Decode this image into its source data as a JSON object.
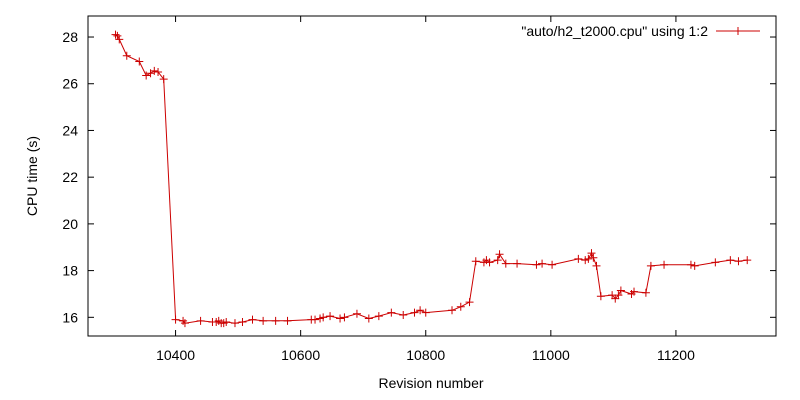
{
  "chart_data": {
    "type": "line",
    "title": "",
    "xlabel": "Revision number",
    "ylabel": "CPU time (s)",
    "xlim": [
      10260,
      11360
    ],
    "ylim": [
      15.2,
      28.9
    ],
    "xticks": [
      10400,
      10600,
      10800,
      11000,
      11200
    ],
    "yticks": [
      16,
      18,
      20,
      22,
      24,
      26,
      28
    ],
    "grid": false,
    "legend_position": "top-right",
    "color": "#cc0000",
    "series": [
      {
        "name": "\"auto/h2_t2000.cpu\" using 1:2",
        "x": [
          10304,
          10307,
          10310,
          10322,
          10342,
          10353,
          10360,
          10366,
          10372,
          10381,
          10400,
          10412,
          10415,
          10440,
          10459,
          10465,
          10469,
          10473,
          10477,
          10481,
          10495,
          10507,
          10523,
          10540,
          10560,
          10579,
          10617,
          10623,
          10631,
          10636,
          10647,
          10663,
          10670,
          10690,
          10709,
          10725,
          10745,
          10764,
          10782,
          10791,
          10800,
          10842,
          10856,
          10870,
          10880,
          10893,
          10897,
          10902,
          10915,
          10918,
          10928,
          10946,
          10977,
          10986,
          11002,
          11044,
          11055,
          11060,
          11065,
          11068,
          11073,
          11080,
          11098,
          11103,
          11108,
          11112,
          11129,
          11133,
          11152,
          11160,
          11181,
          11224,
          11230,
          11263,
          11287,
          11300,
          11314
        ],
        "y": [
          28.1,
          28.05,
          27.9,
          27.2,
          26.95,
          26.35,
          26.45,
          26.55,
          26.5,
          26.2,
          15.9,
          15.85,
          15.75,
          15.85,
          15.8,
          15.8,
          15.85,
          15.75,
          15.75,
          15.8,
          15.75,
          15.8,
          15.9,
          15.85,
          15.85,
          15.85,
          15.9,
          15.9,
          15.95,
          16.0,
          16.05,
          15.95,
          16.0,
          16.15,
          15.95,
          16.05,
          16.2,
          16.1,
          16.2,
          16.3,
          16.2,
          16.3,
          16.45,
          16.65,
          18.4,
          18.35,
          18.45,
          18.35,
          18.45,
          18.7,
          18.3,
          18.3,
          18.25,
          18.3,
          18.25,
          18.5,
          18.45,
          18.5,
          18.75,
          18.55,
          18.2,
          16.9,
          16.95,
          16.8,
          16.95,
          17.15,
          17.0,
          17.1,
          17.05,
          18.2,
          18.25,
          18.25,
          18.2,
          18.35,
          18.45,
          18.4,
          18.45
        ]
      }
    ]
  }
}
